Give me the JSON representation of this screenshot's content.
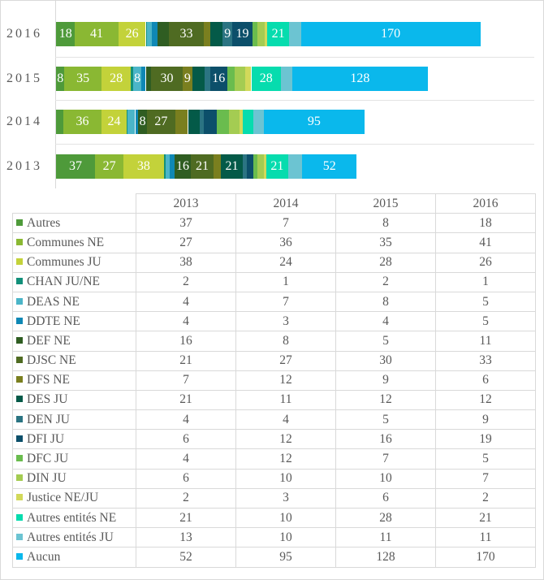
{
  "chart_data": {
    "type": "bar",
    "orientation": "horizontal",
    "stacked": true,
    "data_labels": true,
    "categories": [
      "2013",
      "2014",
      "2015",
      "2016"
    ],
    "series": [
      {
        "name": "Autres",
        "color": "#4e9a3a",
        "values": [
          37,
          7,
          8,
          18
        ]
      },
      {
        "name": "Communes NE",
        "color": "#8ab833",
        "values": [
          27,
          36,
          35,
          41
        ]
      },
      {
        "name": "Communes JU",
        "color": "#c3d23a",
        "values": [
          38,
          24,
          28,
          26
        ]
      },
      {
        "name": "CHAN JU/NE",
        "color": "#12907a",
        "values": [
          2,
          1,
          2,
          1
        ]
      },
      {
        "name": "DEAS NE",
        "color": "#4bb5c8",
        "values": [
          4,
          7,
          8,
          5
        ]
      },
      {
        "name": "DDTE NE",
        "color": "#0f88b5",
        "values": [
          4,
          3,
          4,
          5
        ]
      },
      {
        "name": "DEF NE",
        "color": "#2f5d22",
        "values": [
          16,
          8,
          5,
          11
        ]
      },
      {
        "name": "DJSC NE",
        "color": "#4f6b22",
        "values": [
          21,
          27,
          30,
          33
        ]
      },
      {
        "name": "DFS NE",
        "color": "#7a7f1f",
        "values": [
          7,
          12,
          9,
          6
        ]
      },
      {
        "name": "DES JU",
        "color": "#045a48",
        "values": [
          21,
          11,
          12,
          12
        ]
      },
      {
        "name": "DEN JU",
        "color": "#2b7482",
        "values": [
          4,
          4,
          5,
          9
        ]
      },
      {
        "name": "DFI JU",
        "color": "#0c4f6a",
        "values": [
          6,
          12,
          16,
          19
        ]
      },
      {
        "name": "DFC JU",
        "color": "#6abc4e",
        "values": [
          4,
          12,
          7,
          5
        ]
      },
      {
        "name": "DIN JU",
        "color": "#a4cc52",
        "values": [
          6,
          10,
          10,
          7
        ]
      },
      {
        "name": "Justice NE/JU",
        "color": "#d2d95a",
        "values": [
          2,
          3,
          6,
          2
        ]
      },
      {
        "name": "Autres entités NE",
        "color": "#06dcae",
        "values": [
          21,
          10,
          28,
          21
        ]
      },
      {
        "name": "Autres entités JU",
        "color": "#6cc4d2",
        "values": [
          13,
          10,
          11,
          11
        ]
      },
      {
        "name": "Aucun",
        "color": "#0ab8ec",
        "values": [
          52,
          95,
          128,
          170
        ]
      }
    ],
    "legend": "data-table-below",
    "grid": false
  }
}
